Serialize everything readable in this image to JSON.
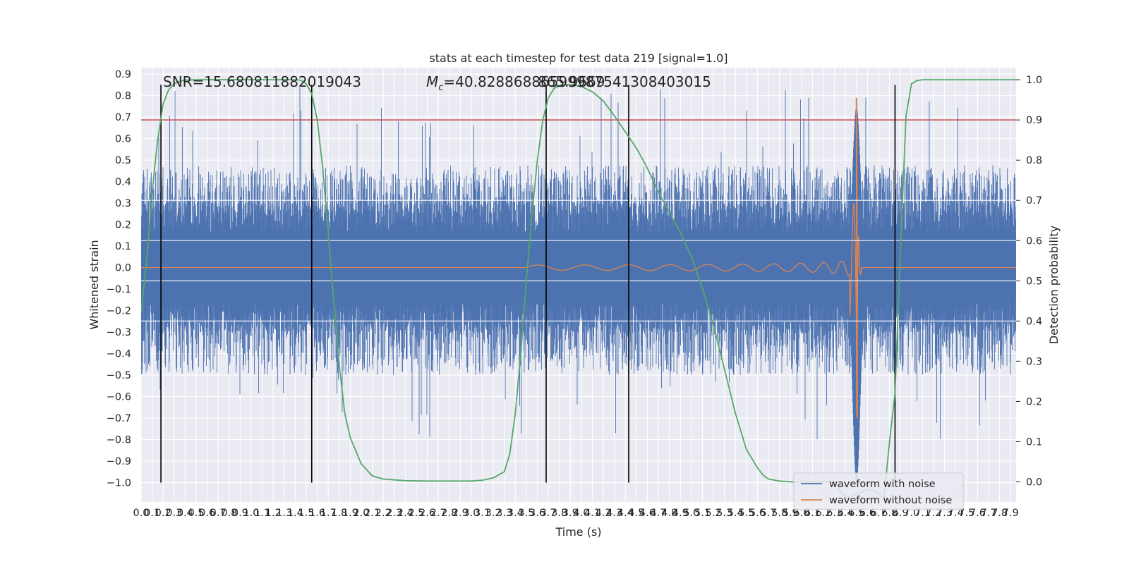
{
  "chart_data": {
    "type": "line",
    "title": "stats at each timestep for test data 219 [signal=1.0]",
    "xlabel": "Time (s)",
    "ylabel": "Whitened strain",
    "y2label": "Detection probability",
    "xlim": [
      0.0,
      7.95
    ],
    "ylim": [
      -1.09,
      0.93
    ],
    "y2lim": [
      -0.05,
      1.03
    ],
    "x_ticks": [
      "0.0",
      "0.1",
      "0.2",
      "0.3",
      "0.4",
      "0.5",
      "0.6",
      "0.7",
      "0.8",
      "0.9",
      "1.0",
      "1.1",
      "1.2",
      "1.3",
      "1.4",
      "1.5",
      "1.6",
      "1.7",
      "1.8",
      "1.9",
      "2.0",
      "2.1",
      "2.2",
      "2.3",
      "2.4",
      "2.5",
      "2.6",
      "2.7",
      "2.8",
      "2.9",
      "3.0",
      "3.1",
      "3.2",
      "3.3",
      "3.4",
      "3.5",
      "3.6",
      "3.7",
      "3.8",
      "3.9",
      "4.0",
      "4.1",
      "4.2",
      "4.3",
      "4.4",
      "4.5",
      "4.6",
      "4.7",
      "4.8",
      "4.9",
      "5.0",
      "5.1",
      "5.2",
      "5.3",
      "5.4",
      "5.5",
      "5.6",
      "5.7",
      "5.8",
      "5.9",
      "6.0",
      "6.1",
      "6.2",
      "6.3",
      "6.4",
      "6.5",
      "6.6",
      "6.7",
      "6.8",
      "6.9",
      "7.0",
      "7.1",
      "7.2",
      "7.3",
      "7.4",
      "7.5",
      "7.6",
      "7.7",
      "7.8",
      "7.9"
    ],
    "y_ticks": [
      "0.9",
      "0.8",
      "0.7",
      "0.6",
      "0.5",
      "0.4",
      "0.3",
      "0.2",
      "0.1",
      "0.0",
      "−0.1",
      "−0.2",
      "−0.3",
      "−0.4",
      "−0.5",
      "−0.6",
      "−0.7",
      "−0.8",
      "−0.9",
      "−1.0"
    ],
    "y2_ticks": [
      "1.0",
      "0.9",
      "0.8",
      "0.7",
      "0.6",
      "0.5",
      "0.4",
      "0.3",
      "0.2",
      "0.1",
      "0.0"
    ],
    "annotations": {
      "snr": "SNR=15.680811882019043",
      "mc_symbol": "M",
      "mc_sub": "c",
      "mc_value": "=40.82886886599987541308403015",
      "mc_overprint": "865.9669"
    },
    "threshold": {
      "y2": 0.9,
      "color": "#c44e52"
    },
    "vlines_x": [
      0.18,
      1.55,
      3.68,
      4.43,
      6.85
    ],
    "vlines_yrange": [
      -1.0,
      0.85
    ],
    "noise_envelope": {
      "core": 0.25,
      "typical_peak": 0.5,
      "max_peak": 0.85,
      "min_peak": -1.0
    },
    "chirp": {
      "start_x": 3.5,
      "merger_x": 6.5,
      "peak": 0.79,
      "trough": -0.7
    },
    "series": [
      {
        "name": "waveform with noise",
        "color": "#4c72b0"
      },
      {
        "name": "waveform without noise",
        "color": "#dd8452"
      },
      {
        "color": "#55a868",
        "x": [
          0.0,
          0.05,
          0.1,
          0.15,
          0.2,
          0.25,
          0.3,
          0.35,
          0.4,
          0.5,
          0.6,
          0.8,
          1.0,
          1.2,
          1.4,
          1.45,
          1.5,
          1.55,
          1.6,
          1.65,
          1.7,
          1.75,
          1.8,
          1.85,
          1.9,
          2.0,
          2.1,
          2.2,
          2.4,
          2.6,
          2.8,
          3.0,
          3.1,
          3.2,
          3.3,
          3.35,
          3.4,
          3.45,
          3.5,
          3.55,
          3.6,
          3.65,
          3.7,
          3.75,
          3.8,
          3.85,
          3.9,
          4.0,
          4.1,
          4.2,
          4.3,
          4.4,
          4.5,
          4.6,
          4.7,
          4.8,
          4.9,
          5.0,
          5.1,
          5.2,
          5.3,
          5.4,
          5.5,
          5.6,
          5.65,
          5.7,
          5.8,
          5.9,
          6.0,
          6.1,
          6.2,
          6.3,
          6.4,
          6.5,
          6.6,
          6.65,
          6.7,
          6.75,
          6.8,
          6.85,
          6.9,
          6.95,
          7.0,
          7.05,
          7.1,
          7.2,
          7.5,
          7.95
        ],
        "y": [
          0.42,
          0.55,
          0.72,
          0.85,
          0.94,
          0.975,
          0.99,
          0.996,
          0.999,
          1.0,
          1.0,
          1.0,
          1.0,
          1.0,
          1.0,
          0.999,
          0.99,
          0.965,
          0.9,
          0.78,
          0.62,
          0.45,
          0.29,
          0.17,
          0.11,
          0.045,
          0.015,
          0.007,
          0.003,
          0.002,
          0.002,
          0.002,
          0.004,
          0.01,
          0.025,
          0.07,
          0.17,
          0.32,
          0.5,
          0.66,
          0.8,
          0.9,
          0.955,
          0.978,
          0.986,
          0.988,
          0.988,
          0.983,
          0.97,
          0.947,
          0.91,
          0.87,
          0.83,
          0.78,
          0.72,
          0.67,
          0.62,
          0.56,
          0.48,
          0.39,
          0.28,
          0.17,
          0.08,
          0.035,
          0.017,
          0.007,
          0.002,
          0.0,
          0.0,
          0.0,
          0.0,
          0.0,
          -0.04,
          -0.03,
          -0.02,
          -0.02,
          -0.03,
          -0.04,
          0.1,
          0.22,
          0.58,
          0.91,
          0.99,
          0.998,
          1.0,
          1.0,
          1.0,
          1.0
        ]
      }
    ],
    "grid": true,
    "legend_position": "lower-right"
  }
}
